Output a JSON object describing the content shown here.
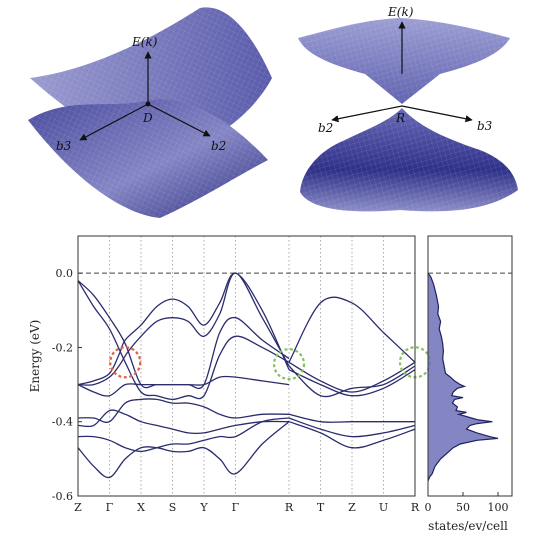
{
  "figure": {
    "panel_a": {
      "energy_label": "E(k)",
      "point_label": "D",
      "b3_label": "b3",
      "b2_label": "b2"
    },
    "panel_b": {
      "energy_label": "E(k)",
      "point_label": "R",
      "b2_label": "b2",
      "b3_label": "b3"
    }
  },
  "chart_data": [
    {
      "type": "line",
      "title": "",
      "ylabel": "Energy (eV)",
      "ylim": [
        -0.6,
        0.1
      ],
      "yticks": [
        0.0,
        -0.2,
        -0.4,
        -0.6
      ],
      "ytick_labels": [
        "0.0",
        "-0.2",
        "-0.4",
        "-0.6"
      ],
      "kpath": [
        "Z",
        "Γ",
        "X",
        "S",
        "Y",
        "Γ",
        "R",
        "T",
        "Z",
        "U",
        "R"
      ],
      "kpos": [
        0,
        1,
        2,
        3,
        4,
        5,
        6.7,
        7.7,
        8.7,
        9.7,
        10.7
      ],
      "fermi_level": 0.0,
      "grid": "vertical dotted at high-symmetry points",
      "line_color": "#2a2c6e",
      "bands": [
        [
          [
            0,
            -0.02
          ],
          [
            0.5,
            -0.06
          ],
          [
            1,
            -0.12
          ],
          [
            1.5,
            -0.19
          ],
          [
            2,
            -0.3
          ],
          [
            2.5,
            -0.3
          ],
          [
            3,
            -0.3
          ],
          [
            3.5,
            -0.3
          ],
          [
            4,
            -0.3
          ],
          [
            4.5,
            -0.16
          ],
          [
            5,
            -0.12
          ],
          [
            5.85,
            -0.18
          ],
          [
            6.7,
            -0.23
          ]
        ],
        [
          [
            0,
            -0.02
          ],
          [
            0.5,
            -0.09
          ],
          [
            1,
            -0.15
          ],
          [
            1.5,
            -0.24
          ],
          [
            2,
            -0.32
          ],
          [
            2.5,
            -0.33
          ],
          [
            3,
            -0.34
          ],
          [
            3.5,
            -0.33
          ],
          [
            4,
            -0.33
          ],
          [
            4.5,
            -0.22
          ],
          [
            5,
            -0.17
          ],
          [
            5.85,
            -0.2
          ],
          [
            6.7,
            -0.24
          ]
        ],
        [
          [
            0,
            -0.3
          ],
          [
            0.5,
            -0.3
          ],
          [
            1,
            -0.28
          ],
          [
            1.3,
            -0.25
          ],
          [
            1.6,
            -0.21
          ],
          [
            2,
            -0.17
          ],
          [
            2.5,
            -0.13
          ],
          [
            3,
            -0.12
          ],
          [
            3.5,
            -0.13
          ],
          [
            4,
            -0.17
          ],
          [
            4.5,
            -0.11
          ],
          [
            5,
            -0.0
          ],
          [
            5.85,
            -0.12
          ],
          [
            6.7,
            -0.25
          ]
        ],
        [
          [
            0,
            -0.3
          ],
          [
            0.5,
            -0.29
          ],
          [
            1,
            -0.27
          ],
          [
            1.3,
            -0.22
          ],
          [
            1.5,
            -0.18
          ],
          [
            2,
            -0.14
          ],
          [
            2.5,
            -0.09
          ],
          [
            3,
            -0.07
          ],
          [
            3.5,
            -0.09
          ],
          [
            4,
            -0.14
          ],
          [
            4.5,
            -0.08
          ],
          [
            5,
            -0.0
          ],
          [
            5.85,
            -0.1
          ],
          [
            6.7,
            -0.26
          ]
        ],
        [
          [
            0,
            -0.3
          ],
          [
            0.5,
            -0.32
          ],
          [
            1,
            -0.33
          ],
          [
            1.5,
            -0.3
          ],
          [
            2,
            -0.3
          ],
          [
            2.5,
            -0.3
          ],
          [
            3,
            -0.3
          ],
          [
            3.5,
            -0.3
          ],
          [
            4,
            -0.3
          ],
          [
            4.5,
            -0.28
          ],
          [
            5,
            -0.28
          ],
          [
            5.85,
            -0.29
          ],
          [
            6.7,
            -0.3
          ]
        ],
        [
          [
            6.7,
            -0.24
          ],
          [
            7.7,
            -0.08
          ],
          [
            8.7,
            -0.08
          ],
          [
            9.7,
            -0.16
          ],
          [
            10.7,
            -0.24
          ]
        ],
        [
          [
            6.7,
            -0.24
          ],
          [
            7.7,
            -0.29
          ],
          [
            8.7,
            -0.32
          ],
          [
            9.7,
            -0.29
          ],
          [
            10.7,
            -0.24
          ]
        ],
        [
          [
            6.7,
            -0.25
          ],
          [
            7.7,
            -0.33
          ],
          [
            8.7,
            -0.31
          ],
          [
            9.7,
            -0.3
          ],
          [
            10.7,
            -0.25
          ]
        ],
        [
          [
            6.7,
            -0.26
          ],
          [
            7.7,
            -0.3
          ],
          [
            8.7,
            -0.33
          ],
          [
            9.7,
            -0.31
          ],
          [
            10.7,
            -0.26
          ]
        ],
        [
          [
            0,
            -0.39
          ],
          [
            0.5,
            -0.39
          ],
          [
            1,
            -0.4
          ],
          [
            1.5,
            -0.35
          ],
          [
            2,
            -0.34
          ],
          [
            2.5,
            -0.34
          ],
          [
            3,
            -0.35
          ],
          [
            3.5,
            -0.35
          ],
          [
            4,
            -0.36
          ],
          [
            4.5,
            -0.38
          ],
          [
            5,
            -0.39
          ],
          [
            5.85,
            -0.38
          ],
          [
            6.7,
            -0.38
          ]
        ],
        [
          [
            0,
            -0.41
          ],
          [
            0.5,
            -0.41
          ],
          [
            1,
            -0.37
          ],
          [
            1.5,
            -0.38
          ],
          [
            2,
            -0.4
          ],
          [
            2.5,
            -0.41
          ],
          [
            3,
            -0.42
          ],
          [
            3.5,
            -0.43
          ],
          [
            4,
            -0.43
          ],
          [
            4.5,
            -0.42
          ],
          [
            5,
            -0.41
          ],
          [
            5.85,
            -0.4
          ],
          [
            6.7,
            -0.4
          ]
        ],
        [
          [
            0,
            -0.44
          ],
          [
            0.5,
            -0.44
          ],
          [
            1,
            -0.45
          ],
          [
            1.5,
            -0.47
          ],
          [
            2,
            -0.48
          ],
          [
            2.5,
            -0.47
          ],
          [
            3,
            -0.46
          ],
          [
            3.5,
            -0.46
          ],
          [
            4,
            -0.45
          ],
          [
            4.5,
            -0.44
          ],
          [
            5,
            -0.44
          ],
          [
            5.85,
            -0.4
          ],
          [
            6.7,
            -0.39
          ]
        ],
        [
          [
            0,
            -0.47
          ],
          [
            0.5,
            -0.52
          ],
          [
            1,
            -0.55
          ],
          [
            1.5,
            -0.5
          ],
          [
            2,
            -0.47
          ],
          [
            2.5,
            -0.47
          ],
          [
            3,
            -0.48
          ],
          [
            3.5,
            -0.48
          ],
          [
            4,
            -0.47
          ],
          [
            4.5,
            -0.5
          ],
          [
            5,
            -0.54
          ],
          [
            5.85,
            -0.46
          ],
          [
            6.7,
            -0.4
          ]
        ],
        [
          [
            6.7,
            -0.38
          ],
          [
            7.7,
            -0.4
          ],
          [
            8.7,
            -0.4
          ],
          [
            9.7,
            -0.4
          ],
          [
            10.7,
            -0.4
          ]
        ],
        [
          [
            6.7,
            -0.39
          ],
          [
            7.7,
            -0.42
          ],
          [
            8.7,
            -0.44
          ],
          [
            9.7,
            -0.43
          ],
          [
            10.7,
            -0.41
          ]
        ],
        [
          [
            6.7,
            -0.4
          ],
          [
            7.7,
            -0.43
          ],
          [
            8.7,
            -0.47
          ],
          [
            9.7,
            -0.45
          ],
          [
            10.7,
            -0.42
          ]
        ]
      ],
      "crossings": [
        {
          "x": 1.5,
          "y": -0.24,
          "color": "#e06040"
        },
        {
          "x": 6.7,
          "y": -0.245,
          "color": "#88c060"
        },
        {
          "x": 10.7,
          "y": -0.24,
          "color": "#88c060"
        }
      ]
    },
    {
      "type": "area",
      "title": "",
      "xlabel": "states/ev/cell",
      "xlim": [
        0,
        120
      ],
      "xticks": [
        0,
        50,
        100
      ],
      "xtick_labels": [
        "0",
        "50",
        "100"
      ],
      "ylim": [
        -0.6,
        0.1
      ],
      "fill_color": "#6f70b8",
      "line_color": "#1f2160",
      "dos": [
        [
          0.0,
          0
        ],
        [
          -0.01,
          4
        ],
        [
          -0.03,
          8
        ],
        [
          -0.06,
          12
        ],
        [
          -0.09,
          15
        ],
        [
          -0.11,
          14
        ],
        [
          -0.13,
          18
        ],
        [
          -0.15,
          16
        ],
        [
          -0.17,
          19
        ],
        [
          -0.19,
          21
        ],
        [
          -0.21,
          22
        ],
        [
          -0.23,
          21
        ],
        [
          -0.25,
          23
        ],
        [
          -0.27,
          25
        ],
        [
          -0.28,
          32
        ],
        [
          -0.29,
          38
        ],
        [
          -0.3,
          46
        ],
        [
          -0.305,
          52
        ],
        [
          -0.31,
          42
        ],
        [
          -0.32,
          36
        ],
        [
          -0.33,
          34
        ],
        [
          -0.335,
          50
        ],
        [
          -0.34,
          38
        ],
        [
          -0.35,
          35
        ],
        [
          -0.36,
          42
        ],
        [
          -0.37,
          40
        ],
        [
          -0.375,
          55
        ],
        [
          -0.38,
          44
        ],
        [
          -0.39,
          62
        ],
        [
          -0.395,
          72
        ],
        [
          -0.4,
          92
        ],
        [
          -0.405,
          70
        ],
        [
          -0.41,
          60
        ],
        [
          -0.42,
          55
        ],
        [
          -0.43,
          70
        ],
        [
          -0.44,
          88
        ],
        [
          -0.445,
          100
        ],
        [
          -0.45,
          70
        ],
        [
          -0.46,
          46
        ],
        [
          -0.47,
          36
        ],
        [
          -0.48,
          30
        ],
        [
          -0.5,
          18
        ],
        [
          -0.52,
          10
        ],
        [
          -0.54,
          6
        ],
        [
          -0.55,
          2
        ],
        [
          -0.56,
          0
        ]
      ]
    }
  ]
}
